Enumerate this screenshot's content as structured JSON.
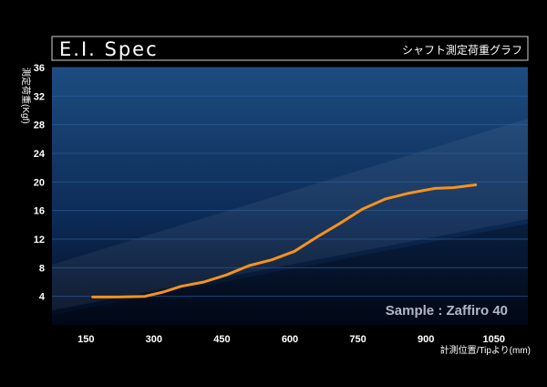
{
  "header": {
    "title": "E.I. Spec",
    "subtitle": "シャフト測定荷重グラフ"
  },
  "chart_data": {
    "type": "line",
    "title": "E.I. Spec",
    "subtitle": "シャフト測定荷重グラフ",
    "xlabel": "計測位置/Tipより(mm)",
    "ylabel": "測定荷重(Kgf)",
    "xlim": [
      75,
      1125
    ],
    "ylim": [
      0,
      36
    ],
    "x_ticks": [
      "150",
      "300",
      "450",
      "600",
      "750",
      "900",
      "1050"
    ],
    "y_ticks": [
      "4",
      "8",
      "12",
      "16",
      "20",
      "24",
      "28",
      "32",
      "36"
    ],
    "grid": true,
    "annotation": "Sample : Zaffiro 40",
    "series": [
      {
        "x": [
          165,
          220,
          280,
          320,
          360,
          410,
          460,
          510,
          560,
          610,
          660,
          710,
          760,
          810,
          860,
          920,
          960,
          1010
        ],
        "y": [
          3.9,
          3.9,
          4.0,
          4.6,
          5.4,
          6.0,
          7.0,
          8.3,
          9.1,
          10.3,
          12.3,
          14.2,
          16.2,
          17.6,
          18.4,
          19.1,
          19.2,
          19.6
        ]
      }
    ],
    "colors": {
      "line": "#f5921e",
      "plot_top": "#1d4c80",
      "plot_bottom": "#020a1c",
      "grid": "#2a5f99",
      "annotation": "#b0b8c6"
    }
  }
}
